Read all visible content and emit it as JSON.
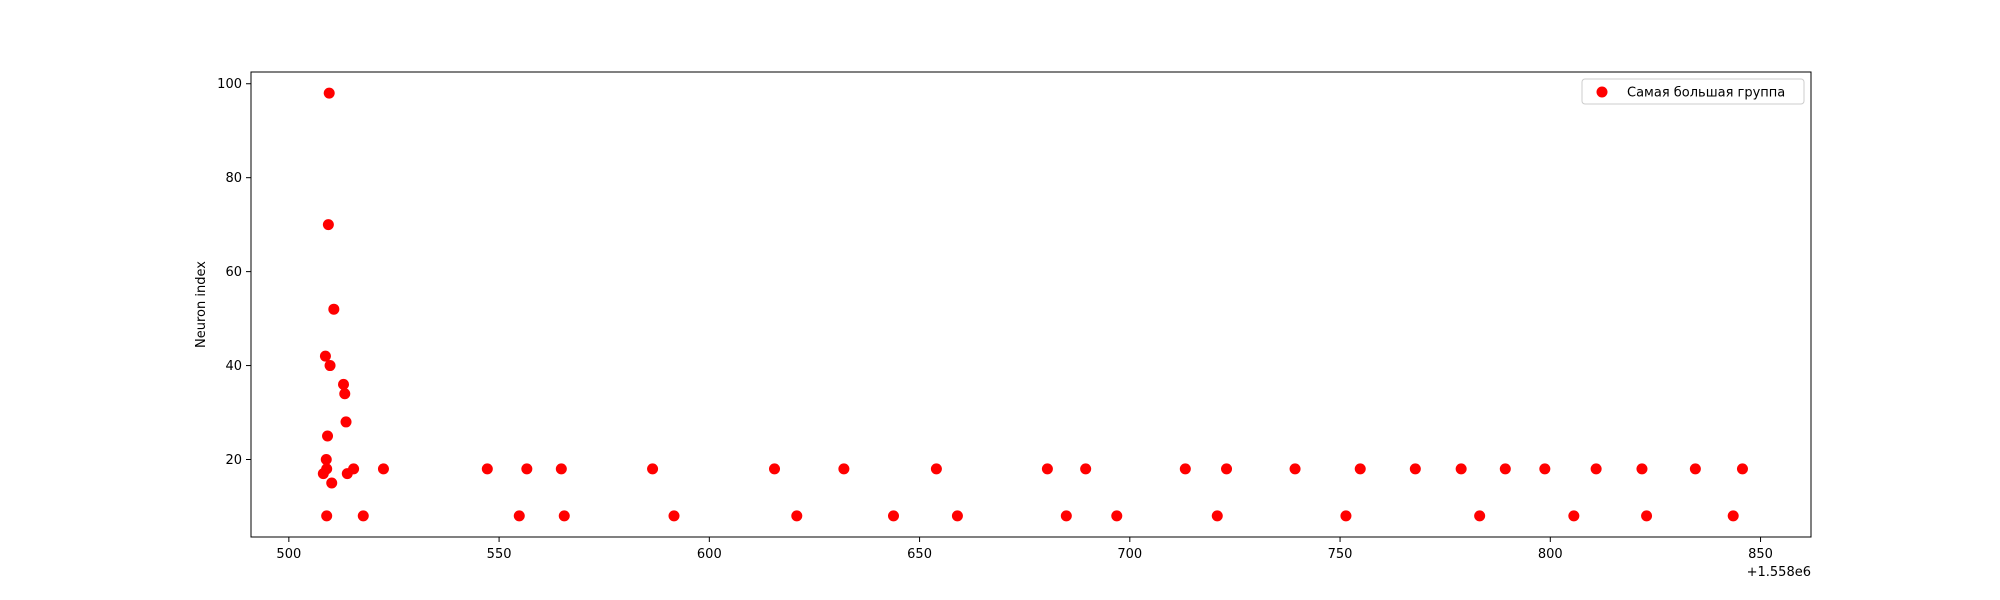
{
  "chart_data": {
    "type": "scatter",
    "title": "",
    "xlabel": "",
    "ylabel": "Neuron index",
    "x_offset_label": "+1.558e6",
    "xlim": [
      491,
      862
    ],
    "ylim": [
      3.5,
      102.5
    ],
    "xticks": [
      500,
      550,
      600,
      650,
      700,
      750,
      800,
      850
    ],
    "yticks": [
      20,
      40,
      60,
      80,
      100
    ],
    "grid": false,
    "legend_position": "top-right",
    "series": [
      {
        "name": "Самая большая группа",
        "color": "#ff0000",
        "points": [
          [
            508.2,
            17
          ],
          [
            508.7,
            42
          ],
          [
            508.9,
            20
          ],
          [
            509.0,
            8
          ],
          [
            509.0,
            18
          ],
          [
            509.2,
            25
          ],
          [
            509.4,
            70
          ],
          [
            509.6,
            98
          ],
          [
            509.8,
            40
          ],
          [
            510.2,
            15
          ],
          [
            510.7,
            52
          ],
          [
            513.0,
            36
          ],
          [
            513.3,
            34
          ],
          [
            513.6,
            28
          ],
          [
            513.9,
            17
          ],
          [
            515.4,
            18
          ],
          [
            517.7,
            8
          ],
          [
            522.5,
            18
          ],
          [
            547.2,
            18
          ],
          [
            554.8,
            8
          ],
          [
            556.6,
            18
          ],
          [
            564.8,
            18
          ],
          [
            565.5,
            8
          ],
          [
            586.5,
            18
          ],
          [
            591.6,
            8
          ],
          [
            615.5,
            18
          ],
          [
            620.8,
            8
          ],
          [
            632.0,
            18
          ],
          [
            643.8,
            8
          ],
          [
            654.0,
            18
          ],
          [
            659.0,
            8
          ],
          [
            680.4,
            18
          ],
          [
            684.9,
            8
          ],
          [
            689.5,
            18
          ],
          [
            696.9,
            8
          ],
          [
            713.2,
            18
          ],
          [
            720.8,
            8
          ],
          [
            723.0,
            18
          ],
          [
            739.3,
            18
          ],
          [
            751.4,
            8
          ],
          [
            754.8,
            18
          ],
          [
            767.9,
            18
          ],
          [
            778.8,
            18
          ],
          [
            783.2,
            8
          ],
          [
            789.3,
            18
          ],
          [
            798.7,
            18
          ],
          [
            805.6,
            8
          ],
          [
            810.9,
            18
          ],
          [
            821.8,
            18
          ],
          [
            822.9,
            8
          ],
          [
            834.5,
            18
          ],
          [
            843.5,
            8
          ],
          [
            845.7,
            18
          ]
        ]
      }
    ]
  }
}
